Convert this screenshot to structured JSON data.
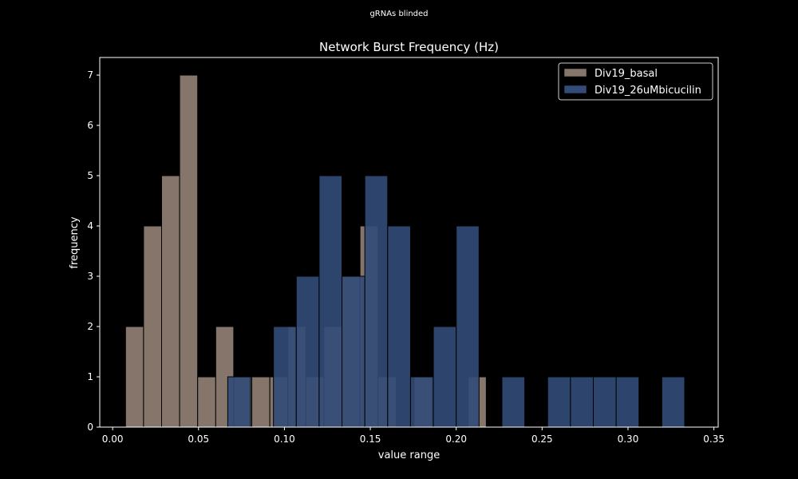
{
  "suptitle": "gRNAs blinded",
  "chart_data": {
    "type": "histogram",
    "title": "Network Burst Frequency (Hz)",
    "xlabel": "value range",
    "ylabel": "frequency",
    "xlim": [
      -0.0075,
      0.3525
    ],
    "ylim": [
      0,
      7.35
    ],
    "xticks": [
      "0.00",
      "0.05",
      "0.10",
      "0.15",
      "0.20",
      "0.25",
      "0.30",
      "0.35"
    ],
    "yticks": [
      "0",
      "1",
      "2",
      "3",
      "4",
      "5",
      "6",
      "7"
    ],
    "grid": false,
    "legend_position": "top-right",
    "series": [
      {
        "name": "Div19_basal",
        "color": "#85756a",
        "bins": [
          {
            "x0": 0.0075,
            "x1": 0.018,
            "count": 2
          },
          {
            "x0": 0.018,
            "x1": 0.0285,
            "count": 4
          },
          {
            "x0": 0.0285,
            "x1": 0.039,
            "count": 5
          },
          {
            "x0": 0.039,
            "x1": 0.0495,
            "count": 7
          },
          {
            "x0": 0.0495,
            "x1": 0.06,
            "count": 1
          },
          {
            "x0": 0.06,
            "x1": 0.0705,
            "count": 2
          },
          {
            "x0": 0.0705,
            "x1": 0.081,
            "count": 1
          },
          {
            "x0": 0.081,
            "x1": 0.0915,
            "count": 1
          },
          {
            "x0": 0.0915,
            "x1": 0.102,
            "count": 1
          },
          {
            "x0": 0.102,
            "x1": 0.1125,
            "count": 2
          },
          {
            "x0": 0.1125,
            "x1": 0.123,
            "count": 1
          },
          {
            "x0": 0.123,
            "x1": 0.1335,
            "count": 2
          },
          {
            "x0": 0.1335,
            "x1": 0.144,
            "count": 3
          },
          {
            "x0": 0.144,
            "x1": 0.1545,
            "count": 4
          },
          {
            "x0": 0.1545,
            "x1": 0.165,
            "count": 1
          },
          {
            "x0": 0.165,
            "x1": 0.1755,
            "count": 0
          },
          {
            "x0": 0.1755,
            "x1": 0.186,
            "count": 1
          },
          {
            "x0": 0.186,
            "x1": 0.1965,
            "count": 0
          },
          {
            "x0": 0.1965,
            "x1": 0.207,
            "count": 0
          },
          {
            "x0": 0.207,
            "x1": 0.2175,
            "count": 1
          }
        ]
      },
      {
        "name": "Div19_26uMbicucilin",
        "color": "#324b78",
        "bins": [
          {
            "x0": 0.067,
            "x1": 0.0803,
            "count": 1
          },
          {
            "x0": 0.0803,
            "x1": 0.0936,
            "count": 0
          },
          {
            "x0": 0.0936,
            "x1": 0.1069,
            "count": 2
          },
          {
            "x0": 0.1069,
            "x1": 0.1202,
            "count": 3
          },
          {
            "x0": 0.1202,
            "x1": 0.1335,
            "count": 5
          },
          {
            "x0": 0.1335,
            "x1": 0.1468,
            "count": 3
          },
          {
            "x0": 0.1468,
            "x1": 0.1601,
            "count": 5
          },
          {
            "x0": 0.1601,
            "x1": 0.1734,
            "count": 4
          },
          {
            "x0": 0.1734,
            "x1": 0.1867,
            "count": 1
          },
          {
            "x0": 0.1867,
            "x1": 0.2,
            "count": 2
          },
          {
            "x0": 0.2,
            "x1": 0.2133,
            "count": 4
          },
          {
            "x0": 0.2133,
            "x1": 0.2266,
            "count": 0
          },
          {
            "x0": 0.2266,
            "x1": 0.2399,
            "count": 1
          },
          {
            "x0": 0.2399,
            "x1": 0.2532,
            "count": 0
          },
          {
            "x0": 0.2532,
            "x1": 0.2665,
            "count": 1
          },
          {
            "x0": 0.2665,
            "x1": 0.2798,
            "count": 1
          },
          {
            "x0": 0.2798,
            "x1": 0.2931,
            "count": 1
          },
          {
            "x0": 0.2931,
            "x1": 0.3064,
            "count": 1
          },
          {
            "x0": 0.3064,
            "x1": 0.3197,
            "count": 0
          },
          {
            "x0": 0.3197,
            "x1": 0.333,
            "count": 1
          }
        ]
      }
    ]
  }
}
